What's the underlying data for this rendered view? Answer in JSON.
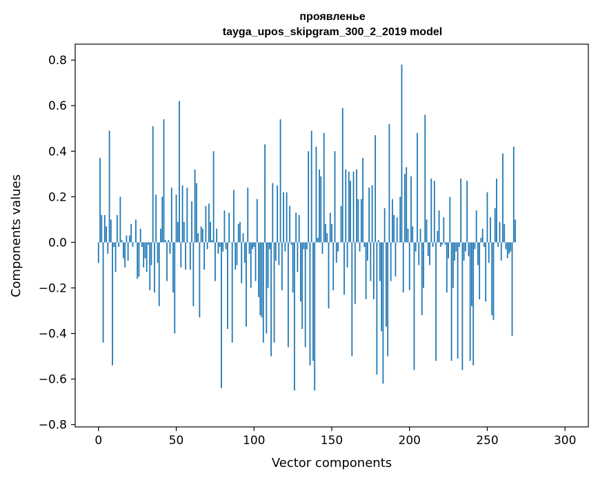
{
  "chart_data": {
    "type": "bar",
    "title": "проявленье",
    "subtitle": "tayga_upos_skipgram_300_2_2019 model",
    "xlabel": "Vector components",
    "ylabel": "Components values",
    "xlim": [
      -15,
      315
    ],
    "ylim": [
      -0.81,
      0.87
    ],
    "xticks": [
      0,
      50,
      100,
      150,
      200,
      250,
      300
    ],
    "yticks": [
      -0.8,
      -0.6,
      -0.4,
      -0.2,
      0.0,
      0.2,
      0.4,
      0.6,
      0.8
    ],
    "ytick_labels": [
      "−0.8",
      "−0.6",
      "−0.4",
      "−0.2",
      "0.0",
      "0.2",
      "0.4",
      "0.6",
      "0.8"
    ],
    "bar_color": "#1f77b4",
    "grid": false,
    "series": [
      {
        "values": [
          -0.09,
          0.37,
          0.12,
          -0.44,
          0.12,
          0.07,
          -0.05,
          0.49,
          0.1,
          -0.54,
          -0.02,
          -0.13,
          0.12,
          -0.02,
          0.2,
          0.01,
          -0.07,
          -0.11,
          0.03,
          -0.08,
          0.03,
          0.08,
          -0.02,
          0.0,
          0.1,
          -0.16,
          -0.15,
          0.06,
          -0.02,
          -0.11,
          -0.07,
          -0.13,
          -0.01,
          -0.21,
          -0.1,
          0.51,
          -0.22,
          0.21,
          -0.09,
          -0.28,
          0.06,
          0.2,
          0.54,
          0.01,
          -0.17,
          0.01,
          -0.05,
          0.24,
          -0.22,
          -0.4,
          0.21,
          0.09,
          0.62,
          -0.11,
          0.25,
          0.09,
          -0.12,
          0.24,
          0.0,
          -0.12,
          0.18,
          -0.28,
          0.32,
          0.26,
          0.04,
          -0.33,
          0.07,
          0.06,
          -0.12,
          0.16,
          -0.03,
          0.17,
          0.09,
          0.01,
          0.4,
          -0.17,
          0.06,
          -0.05,
          -0.02,
          -0.64,
          -0.04,
          0.14,
          -0.03,
          -0.38,
          0.13,
          0.0,
          -0.44,
          0.23,
          -0.12,
          -0.1,
          0.08,
          0.09,
          -0.18,
          0.04,
          -0.09,
          -0.37,
          0.24,
          -0.05,
          -0.2,
          -0.03,
          -0.02,
          -0.17,
          0.19,
          -0.24,
          -0.32,
          -0.33,
          -0.44,
          0.43,
          -0.4,
          -0.2,
          -0.03,
          -0.5,
          0.26,
          -0.44,
          -0.08,
          0.25,
          -0.1,
          0.54,
          -0.21,
          0.22,
          -0.04,
          0.22,
          -0.46,
          0.16,
          -0.01,
          -0.22,
          -0.65,
          0.13,
          -0.13,
          0.12,
          -0.26,
          -0.38,
          -0.03,
          -0.46,
          -0.03,
          0.4,
          -0.54,
          0.49,
          -0.52,
          -0.65,
          0.42,
          0.02,
          0.32,
          0.29,
          -0.05,
          0.48,
          0.08,
          0.04,
          -0.29,
          0.13,
          0.08,
          -0.21,
          0.4,
          -0.09,
          -0.04,
          0.0,
          0.16,
          0.59,
          -0.23,
          0.32,
          -0.11,
          0.31,
          0.27,
          -0.5,
          0.31,
          -0.27,
          0.32,
          0.19,
          -0.04,
          0.19,
          0.37,
          -0.02,
          -0.25,
          -0.08,
          0.24,
          -0.17,
          0.25,
          -0.25,
          0.47,
          -0.58,
          0.01,
          -0.17,
          -0.39,
          -0.62,
          0.15,
          -0.37,
          -0.5,
          0.52,
          -0.17,
          0.19,
          0.12,
          -0.15,
          0.11,
          0.0,
          0.2,
          0.78,
          -0.22,
          0.3,
          0.33,
          0.06,
          -0.21,
          0.29,
          0.07,
          -0.56,
          -0.04,
          0.48,
          -0.1,
          0.06,
          -0.32,
          -0.2,
          0.56,
          0.1,
          -0.06,
          -0.1,
          0.28,
          -0.02,
          0.27,
          -0.52,
          0.05,
          0.14,
          -0.02,
          -0.01,
          0.11,
          -0.01,
          -0.22,
          -0.07,
          0.2,
          -0.52,
          -0.2,
          -0.08,
          -0.04,
          -0.51,
          -0.02,
          0.28,
          -0.56,
          -0.08,
          -0.04,
          0.27,
          -0.06,
          -0.52,
          -0.28,
          -0.54,
          -0.03,
          0.14,
          -0.1,
          -0.25,
          0.02,
          0.06,
          -0.02,
          -0.26,
          0.22,
          -0.09,
          0.11,
          -0.32,
          -0.34,
          0.15,
          0.28,
          -0.02,
          0.09,
          -0.08,
          0.39,
          0.08,
          -0.03,
          -0.07,
          -0.05,
          -0.04,
          -0.41,
          0.42,
          0.1
        ]
      }
    ]
  }
}
